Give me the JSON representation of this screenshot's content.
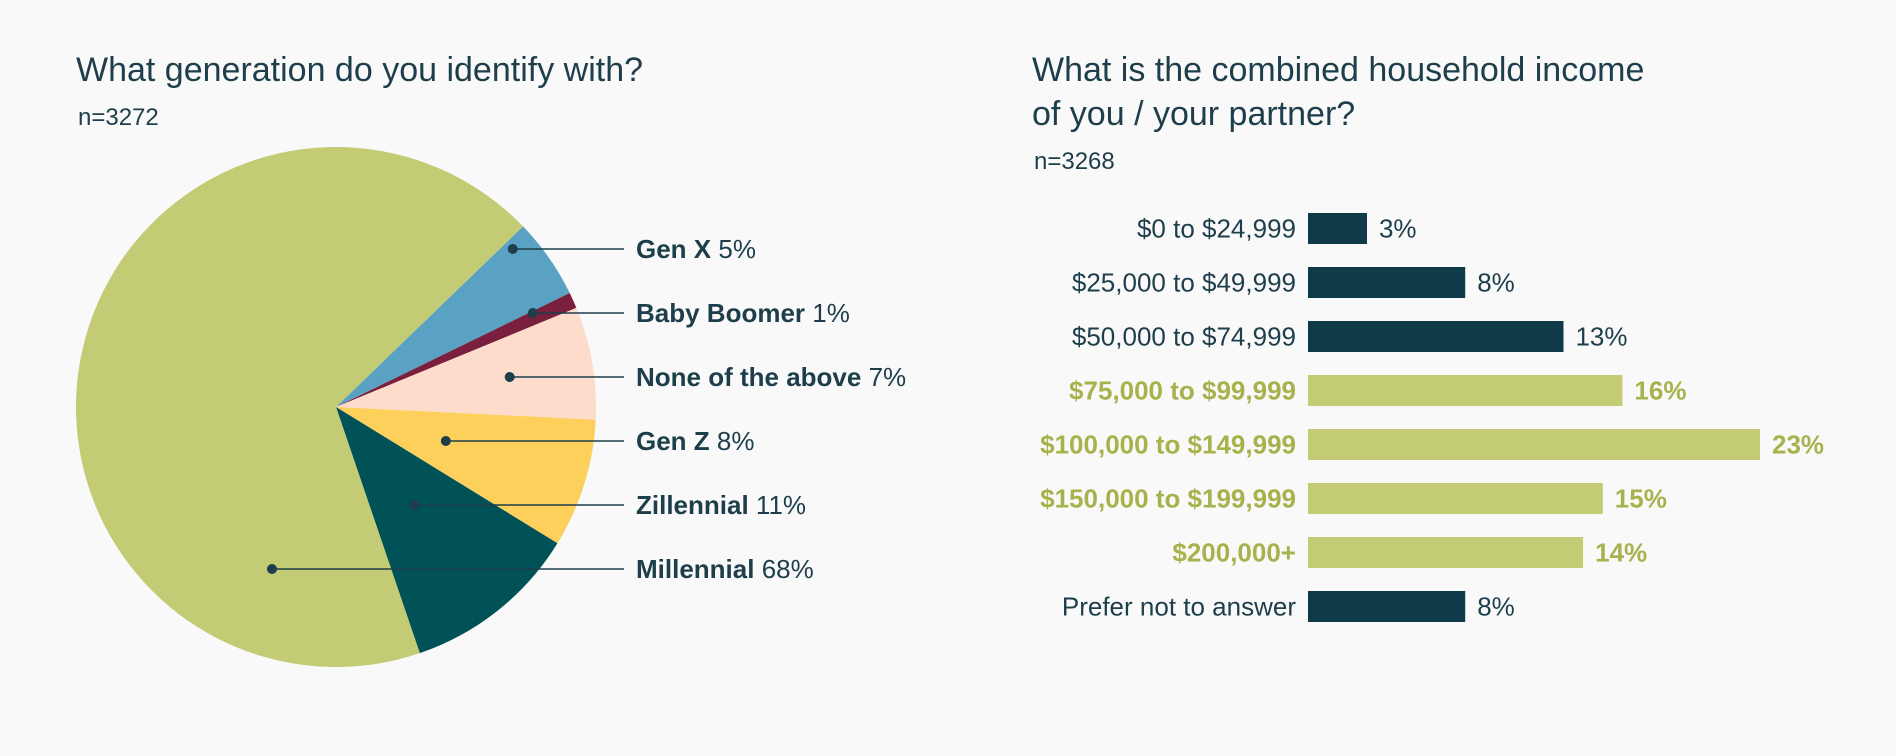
{
  "colors": {
    "background": "#f9f9f9",
    "text": "#1d3e4a",
    "highlight_text": "#a8b24c",
    "bar_dark": "#0f3a47",
    "bar_highlight": "#c3cb74"
  },
  "left": {
    "title": "What generation do you identify with?",
    "n": "n=3272"
  },
  "right": {
    "title_line1": "What is the combined household income",
    "title_line2": "of you / your partner?",
    "n": "n=3268"
  },
  "chart_data": [
    {
      "type": "pie",
      "title": "What generation do you identify with?",
      "subtitle": "n=3272",
      "slices": [
        {
          "label": "Gen X",
          "value": 5,
          "display": "5%",
          "color": "#5aa2c3"
        },
        {
          "label": "Baby Boomer",
          "value": 1,
          "display": "1%",
          "color": "#7a1f3d"
        },
        {
          "label": "None of the above",
          "value": 7,
          "display": "7%",
          "color": "#fddccb"
        },
        {
          "label": "Gen Z",
          "value": 8,
          "display": "8%",
          "color": "#fdd05c"
        },
        {
          "label": "Zillennial",
          "value": 11,
          "display": "11%",
          "color": "#005257"
        },
        {
          "label": "Millennial",
          "value": 68,
          "display": "68%",
          "color": "#c3cb74"
        }
      ]
    },
    {
      "type": "bar",
      "orientation": "horizontal",
      "title": "What is the combined household income of you / your partner?",
      "subtitle": "n=3268",
      "xlim": [
        0,
        23
      ],
      "categories": [
        "$0 to $24,999",
        "$25,000 to $49,999",
        "$50,000 to $74,999",
        "$75,000 to $99,999",
        "$100,000 to $149,999",
        "$150,000 to $199,999",
        "$200,000+",
        "Prefer not to answer"
      ],
      "values": [
        3,
        8,
        13,
        16,
        23,
        15,
        14,
        8
      ],
      "display": [
        "3%",
        "8%",
        "13%",
        "16%",
        "23%",
        "15%",
        "14%",
        "8%"
      ],
      "highlighted": [
        false,
        false,
        false,
        true,
        true,
        true,
        true,
        false
      ]
    }
  ]
}
